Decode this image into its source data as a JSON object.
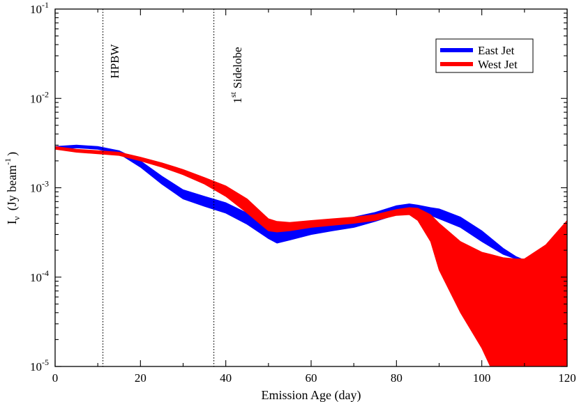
{
  "chart_data": {
    "type": "area",
    "xlabel": "Emission Age (day)",
    "ylabel": {
      "symbol": "I",
      "subscript": "ν",
      "unit_open": "(Jy beam",
      "unit_exponent": "-1",
      "unit_close": ")"
    },
    "xlim": [
      0,
      120
    ],
    "ylim": [
      1e-05,
      0.1
    ],
    "y_scale": "log",
    "grid": false,
    "legend_position": "top-right",
    "x_ticks": [
      {
        "value": 0,
        "label": "0"
      },
      {
        "value": 20,
        "label": "20"
      },
      {
        "value": 40,
        "label": "40"
      },
      {
        "value": 60,
        "label": "60"
      },
      {
        "value": 80,
        "label": "80"
      },
      {
        "value": 100,
        "label": "100"
      },
      {
        "value": 120,
        "label": "120"
      }
    ],
    "y_ticks": [
      {
        "value": 1e-05,
        "base": "10",
        "exponent": "-5"
      },
      {
        "value": 0.0001,
        "base": "10",
        "exponent": "-4"
      },
      {
        "value": 0.001,
        "base": "10",
        "exponent": "-3"
      },
      {
        "value": 0.01,
        "base": "10",
        "exponent": "-2"
      },
      {
        "value": 0.1,
        "base": "10",
        "exponent": "-1"
      }
    ],
    "vertical_lines": [
      {
        "x": 11.2,
        "label": "HPBW"
      },
      {
        "x": 37.2,
        "label_base": "1",
        "label_sup": "st",
        "label_rest": "Sidelobe"
      }
    ],
    "series": [
      {
        "name": "East Jet",
        "color": "#0000ff",
        "x": [
          0,
          5,
          10,
          15,
          20,
          25,
          30,
          35,
          40,
          45,
          50,
          52,
          55,
          60,
          65,
          70,
          75,
          80,
          83,
          85,
          88,
          90,
          95,
          100,
          105,
          108,
          110
        ],
        "upper": [
          0.0029,
          0.003,
          0.0029,
          0.0026,
          0.002,
          0.00135,
          0.00095,
          0.0008,
          0.00068,
          0.00052,
          0.00036,
          0.00033,
          0.00033,
          0.00037,
          0.00042,
          0.00047,
          0.00053,
          0.00063,
          0.00066,
          0.00064,
          0.0006,
          0.00058,
          0.00047,
          0.00033,
          0.00021,
          0.00017,
          0.000155
        ],
        "lower": [
          0.0027,
          0.0028,
          0.0027,
          0.0024,
          0.0017,
          0.0011,
          0.00075,
          0.00062,
          0.00052,
          0.00039,
          0.00027,
          0.00024,
          0.00026,
          0.0003,
          0.00033,
          0.00036,
          0.00042,
          0.0005,
          0.00055,
          0.00053,
          0.00049,
          0.00045,
          0.00036,
          0.00025,
          0.00018,
          0.00016,
          0.000155
        ]
      },
      {
        "name": "West Jet",
        "color": "#ff0000",
        "x": [
          0,
          5,
          10,
          15,
          20,
          25,
          30,
          35,
          40,
          45,
          50,
          52,
          55,
          60,
          65,
          70,
          75,
          80,
          83,
          85,
          88,
          90,
          95,
          100,
          102,
          105,
          108,
          110,
          115,
          120
        ],
        "upper": [
          0.0029,
          0.0027,
          0.0026,
          0.0025,
          0.0022,
          0.0019,
          0.0016,
          0.0013,
          0.00105,
          0.00075,
          0.00045,
          0.00042,
          0.00041,
          0.00043,
          0.00045,
          0.00047,
          0.0005,
          0.00057,
          0.0006,
          0.00059,
          0.0005,
          0.0004,
          0.00025,
          0.00019,
          0.00018,
          0.000165,
          0.00016,
          0.00016,
          0.00023,
          0.00043
        ],
        "lower": [
          0.0027,
          0.0025,
          0.0024,
          0.0023,
          0.002,
          0.0017,
          0.0014,
          0.0011,
          0.0008,
          0.00052,
          0.00033,
          0.00032,
          0.00033,
          0.00036,
          0.00038,
          0.0004,
          0.00043,
          0.00049,
          0.0005,
          0.00043,
          0.00025,
          0.00012,
          4e-05,
          1.6e-05,
          1e-05,
          1e-05,
          1e-05,
          1e-05,
          1e-05,
          1e-05
        ]
      }
    ]
  }
}
